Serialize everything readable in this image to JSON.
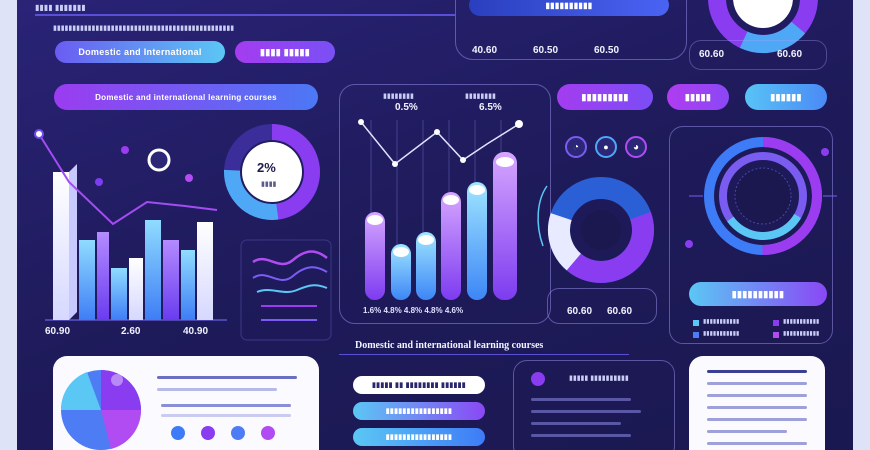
{
  "header": {
    "top_banner": "▮▮▮▮ ▮▮▮▮▮▮▮",
    "subtitle": "▮▮▮▮▮▮▮▮▮▮▮▮▮▮▮▮▮▮▮▮▮▮▮▮▮▮▮▮▮▮▮▮▮▮▮▮▮▮▮▮▮▮▮▮▮▮▮"
  },
  "left": {
    "pill_top_left": "Domestic and International",
    "pill_top_right": "▮▮▮▮ ▮▮▮▮▮",
    "pill_wide": "Domestic and international learning courses",
    "bar_labels": [
      "60.90",
      "2.60",
      "40.90"
    ]
  },
  "donut_center": {
    "value": "2%",
    "caption": "▮▮▮▮"
  },
  "center_panel": {
    "stat_labels": [
      "▮▮▮▮▮▮▮▮",
      "▮▮▮▮▮▮▮▮"
    ],
    "stat_values": [
      "0.5%",
      "6.5%"
    ],
    "axis_text": "1.6% 4.8% 4.8% 4.8% 4.6%"
  },
  "top_center": {
    "values": [
      "40.60",
      "60.50",
      "60.50"
    ],
    "button": "▮▮▮▮▮▮▮▮▮▮"
  },
  "right_top": {
    "values": [
      "60.60",
      "60.60"
    ]
  },
  "pills_right": [
    "▮▮▮▮▮▮▮▮▮",
    "▮▮▮▮▮",
    "▮▮▮▮▮▮"
  ],
  "ring_values": [
    "60.60",
    "60.60"
  ],
  "right_panel": {
    "pill": "▮▮▮▮▮▮▮▮▮▮",
    "legend": [
      "▮▮▮▮▮▮▮▮▮▮▮",
      "▮▮▮▮▮▮▮▮▮▮▮",
      "▮▮▮▮▮▮▮▮▮▮▮",
      "▮▮▮▮▮▮▮▮▮▮▮"
    ]
  },
  "section_title": "Domestic and international learning courses",
  "bottom": {
    "buttons": [
      "▮▮▮▮▮ ▮▮ ▮▮▮▮▮▮▮▮ ▮▮▮▮▮▮",
      "▮▮▮▮▮▮▮▮▮▮▮▮▮▮▮▮",
      "▮▮▮▮▮▮▮▮▮▮▮▮▮▮▮▮"
    ],
    "list_header": "▮▮▮▮▮ ▮▮▮▮▮▮▮▮▮▮"
  },
  "colors": {
    "accent_purple": "#8a3cf0",
    "accent_blue": "#3e7bf7",
    "accent_cyan": "#5fd3f6",
    "panel_bg": "#1f1b5c"
  }
}
